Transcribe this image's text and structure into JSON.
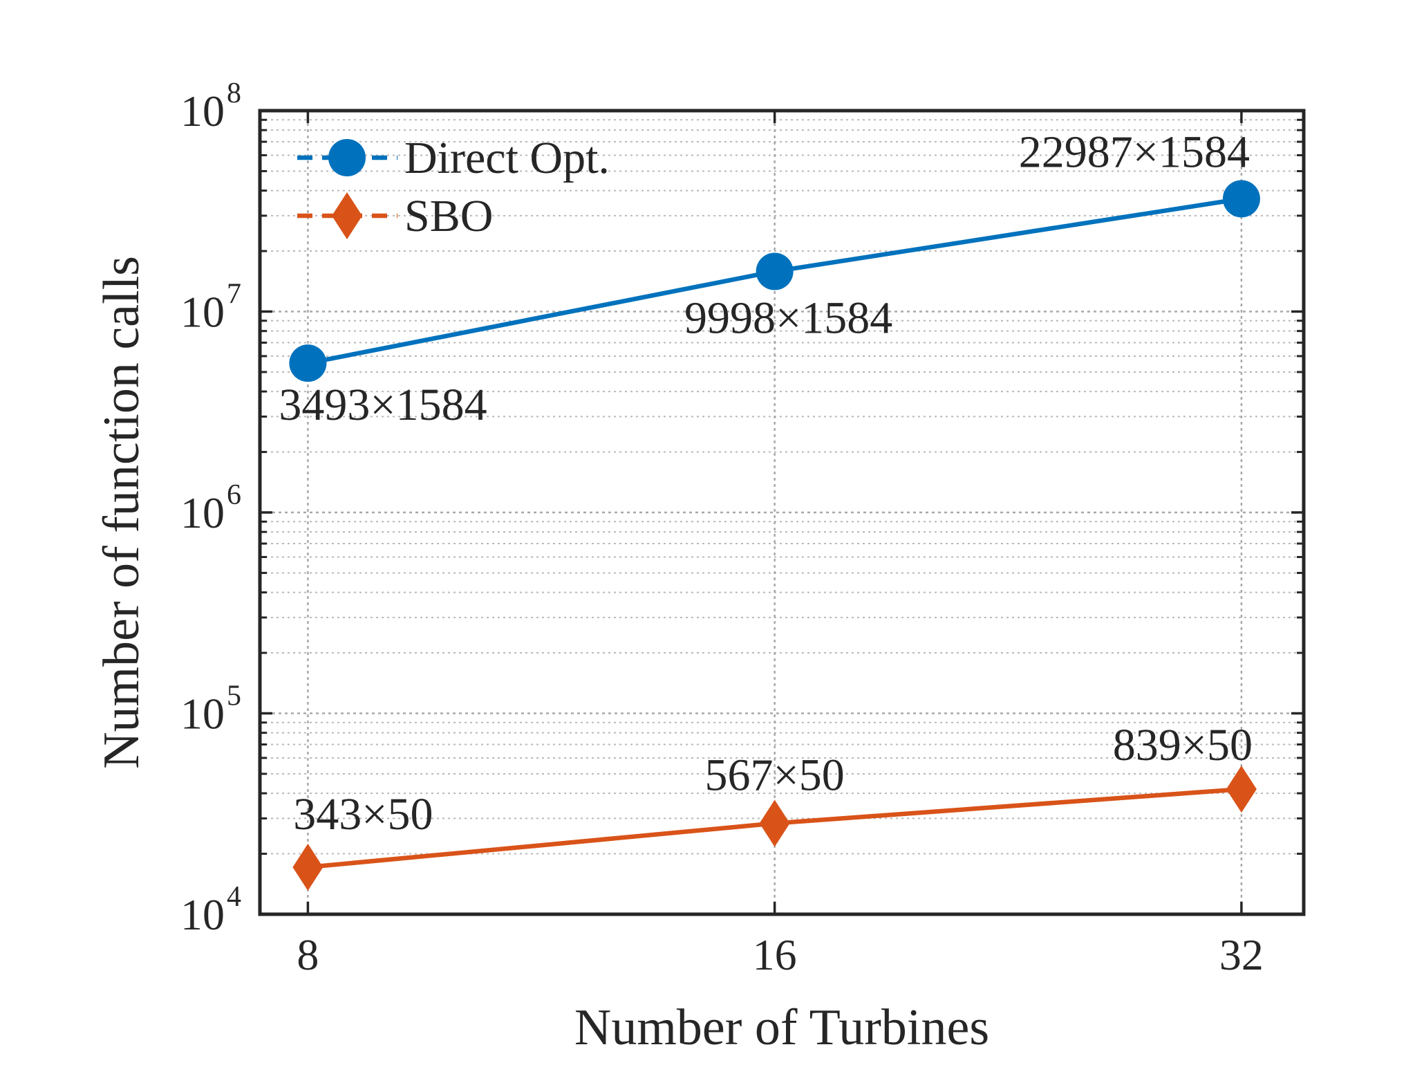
{
  "chart_data": {
    "type": "line",
    "xlabel": "Number of Turbines",
    "ylabel": "Number of function calls",
    "x_scale": "log2",
    "y_scale": "log10",
    "xlim": [
      7.45,
      35.1
    ],
    "ylim": [
      10000,
      100000000
    ],
    "x": [
      8,
      16,
      32
    ],
    "x_tick_labels": [
      "8",
      "16",
      "32"
    ],
    "y_ticks": [
      10000,
      100000,
      1000000,
      10000000,
      100000000
    ],
    "y_tick_labels": [
      {
        "base": "10",
        "exp": "4"
      },
      {
        "base": "10",
        "exp": "5"
      },
      {
        "base": "10",
        "exp": "6"
      },
      {
        "base": "10",
        "exp": "7"
      },
      {
        "base": "10",
        "exp": "8"
      }
    ],
    "grid": true,
    "legend_position": "top-left",
    "series": [
      {
        "name": "Direct Opt.",
        "color": "#0072BD",
        "marker": "circle",
        "values": [
          5532912,
          15836832,
          36411408
        ],
        "labels": [
          "3493×1584",
          "9998×1584",
          "22987×1584"
        ]
      },
      {
        "name": "SBO",
        "color": "#D95319",
        "marker": "diamond",
        "values": [
          17150,
          28350,
          41950
        ],
        "labels": [
          "343×50",
          "567×50",
          "839×50"
        ]
      }
    ]
  }
}
